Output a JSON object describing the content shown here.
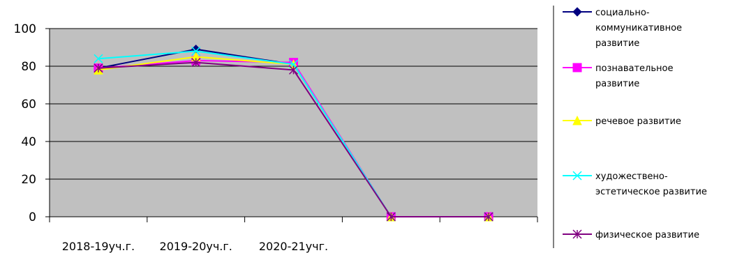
{
  "chart_data": {
    "type": "line",
    "title": "",
    "xlabel": "",
    "ylabel": "",
    "categories": [
      "2018-19уч.г.",
      "2019-20уч.г.",
      "2020-21учг.",
      "",
      ""
    ],
    "ylim": [
      0,
      100
    ],
    "yticks": [
      0,
      20,
      40,
      60,
      80,
      100
    ],
    "grid": "horizontal",
    "legend": "right",
    "series": [
      {
        "name": "социально-коммуникативное развитие",
        "legend_lines": [
          "социально-",
          "коммуникативное",
          "развитие"
        ],
        "color": "#000080",
        "marker": "diamond",
        "values": [
          79,
          89,
          81,
          0,
          0
        ]
      },
      {
        "name": "познавательное развитие",
        "legend_lines": [
          "познавательное",
          "развитие"
        ],
        "color": "#FF00FF",
        "marker": "square",
        "values": [
          79,
          83,
          82,
          0,
          0
        ]
      },
      {
        "name": "речевое развитие",
        "legend_lines": [
          "речевое развитие"
        ],
        "color": "#FFFF00",
        "marker": "triangle",
        "values": [
          78,
          85,
          81,
          0,
          0
        ]
      },
      {
        "name": "художествено-эстетическое развитие",
        "legend_lines": [
          "художествено-",
          "эстетическое развитие"
        ],
        "color": "#00FFFF",
        "marker": "x",
        "values": [
          84,
          88,
          81,
          0,
          0
        ]
      },
      {
        "name": "физическое развитие",
        "legend_lines": [
          "физическое развитие"
        ],
        "color": "#800080",
        "marker": "star",
        "values": [
          79,
          82,
          78,
          0,
          0
        ]
      }
    ]
  }
}
